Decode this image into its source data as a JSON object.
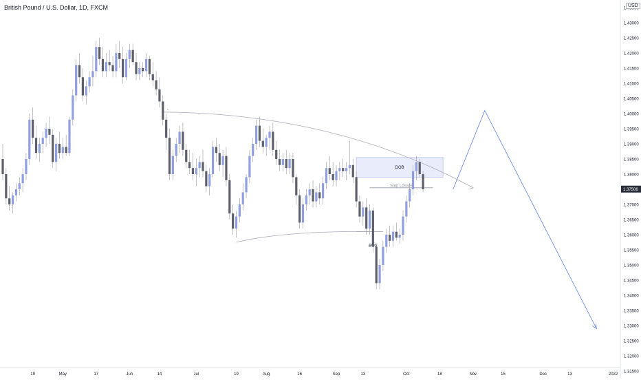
{
  "header": {
    "title": "British Pound / U.S. Dollar, 1D, FXCM",
    "currency": "USD"
  },
  "colors": {
    "bull": "#8f9fe0",
    "bear": "#5d606b",
    "wick": "#9598a1",
    "projection": "#6f8fe0",
    "arc": "#b2b5be",
    "zone_fill": "#e8ecfb",
    "zone_border": "#b9c2ee",
    "price_tag": "#2a2e39"
  },
  "chart_data": {
    "type": "candlestick",
    "symbol": "GBPUSD",
    "y_range": [
      1.3125,
      1.4375
    ],
    "y_ticks": [
      "1.43500",
      "1.43000",
      "1.42500",
      "1.42000",
      "1.41500",
      "1.41000",
      "1.40500",
      "1.40000",
      "1.39500",
      "1.39000",
      "1.38500",
      "1.38000",
      "1.37500",
      "1.37000",
      "1.36500",
      "1.36000",
      "1.35500",
      "1.35000",
      "1.34500",
      "1.34000",
      "1.33500",
      "1.33000",
      "1.32500",
      "1.32000",
      "1.31500"
    ],
    "x_labels": [
      {
        "i": 9,
        "label": "19"
      },
      {
        "i": 18,
        "label": "May"
      },
      {
        "i": 28,
        "label": "17"
      },
      {
        "i": 38,
        "label": "Jun"
      },
      {
        "i": 47,
        "label": "14"
      },
      {
        "i": 58,
        "label": "Jul"
      },
      {
        "i": 70,
        "label": "19"
      },
      {
        "i": 79,
        "label": "Aug"
      },
      {
        "i": 89,
        "label": "16"
      },
      {
        "i": 100,
        "label": "Sep"
      },
      {
        "i": 108,
        "label": "13"
      },
      {
        "i": 121,
        "label": "Oct"
      },
      {
        "i": 131,
        "label": "18"
      },
      {
        "i": 141,
        "label": "Nov"
      },
      {
        "i": 150,
        "label": "15"
      },
      {
        "i": 162,
        "label": "Dec"
      },
      {
        "i": 170,
        "label": "13"
      },
      {
        "i": 183,
        "label": "2022"
      }
    ],
    "candles": [
      [
        1.385,
        1.39,
        1.378,
        1.38
      ],
      [
        1.38,
        1.382,
        1.37,
        1.372
      ],
      [
        1.372,
        1.376,
        1.368,
        1.37
      ],
      [
        1.37,
        1.374,
        1.367,
        1.373
      ],
      [
        1.373,
        1.377,
        1.371,
        1.375
      ],
      [
        1.375,
        1.379,
        1.373,
        1.377
      ],
      [
        1.377,
        1.382,
        1.374,
        1.38
      ],
      [
        1.38,
        1.387,
        1.378,
        1.385
      ],
      [
        1.385,
        1.4,
        1.383,
        1.398
      ],
      [
        1.398,
        1.402,
        1.39,
        1.392
      ],
      [
        1.392,
        1.396,
        1.385,
        1.387
      ],
      [
        1.387,
        1.392,
        1.384,
        1.39
      ],
      [
        1.39,
        1.394,
        1.387,
        1.392
      ],
      [
        1.392,
        1.397,
        1.389,
        1.395
      ],
      [
        1.395,
        1.399,
        1.39,
        1.393
      ],
      [
        1.393,
        1.395,
        1.382,
        1.384
      ],
      [
        1.384,
        1.392,
        1.381,
        1.39
      ],
      [
        1.39,
        1.394,
        1.385,
        1.387
      ],
      [
        1.387,
        1.392,
        1.385,
        1.389
      ],
      [
        1.389,
        1.393,
        1.386,
        1.387
      ],
      [
        1.387,
        1.399,
        1.386,
        1.398
      ],
      [
        1.398,
        1.408,
        1.396,
        1.406
      ],
      [
        1.406,
        1.418,
        1.404,
        1.416
      ],
      [
        1.416,
        1.42,
        1.41,
        1.412
      ],
      [
        1.412,
        1.415,
        1.404,
        1.406
      ],
      [
        1.406,
        1.411,
        1.403,
        1.409
      ],
      [
        1.409,
        1.414,
        1.407,
        1.412
      ],
      [
        1.412,
        1.419,
        1.409,
        1.414
      ],
      [
        1.414,
        1.424,
        1.412,
        1.422
      ],
      [
        1.422,
        1.425,
        1.416,
        1.418
      ],
      [
        1.418,
        1.422,
        1.412,
        1.414
      ],
      [
        1.414,
        1.42,
        1.412,
        1.417
      ],
      [
        1.417,
        1.421,
        1.414,
        1.416
      ],
      [
        1.416,
        1.419,
        1.412,
        1.414
      ],
      [
        1.414,
        1.423,
        1.412,
        1.42
      ],
      [
        1.42,
        1.424,
        1.415,
        1.418
      ],
      [
        1.418,
        1.422,
        1.41,
        1.412
      ],
      [
        1.412,
        1.42,
        1.411,
        1.418
      ],
      [
        1.418,
        1.423,
        1.415,
        1.421
      ],
      [
        1.421,
        1.423,
        1.416,
        1.417
      ],
      [
        1.417,
        1.42,
        1.411,
        1.413
      ],
      [
        1.413,
        1.417,
        1.411,
        1.415
      ],
      [
        1.415,
        1.417,
        1.412,
        1.414
      ],
      [
        1.414,
        1.42,
        1.412,
        1.418
      ],
      [
        1.418,
        1.419,
        1.411,
        1.413
      ],
      [
        1.413,
        1.417,
        1.409,
        1.411
      ],
      [
        1.411,
        1.414,
        1.406,
        1.408
      ],
      [
        1.408,
        1.412,
        1.402,
        1.404
      ],
      [
        1.404,
        1.406,
        1.396,
        1.398
      ],
      [
        1.398,
        1.4,
        1.388,
        1.392
      ],
      [
        1.392,
        1.395,
        1.378,
        1.38
      ],
      [
        1.38,
        1.388,
        1.378,
        1.386
      ],
      [
        1.386,
        1.392,
        1.384,
        1.39
      ],
      [
        1.39,
        1.396,
        1.387,
        1.394
      ],
      [
        1.394,
        1.397,
        1.386,
        1.388
      ],
      [
        1.388,
        1.39,
        1.382,
        1.384
      ],
      [
        1.384,
        1.388,
        1.38,
        1.382
      ],
      [
        1.382,
        1.387,
        1.378,
        1.38
      ],
      [
        1.38,
        1.385,
        1.376,
        1.382
      ],
      [
        1.382,
        1.386,
        1.379,
        1.384
      ],
      [
        1.384,
        1.388,
        1.379,
        1.381
      ],
      [
        1.381,
        1.383,
        1.374,
        1.376
      ],
      [
        1.376,
        1.382,
        1.373,
        1.38
      ],
      [
        1.38,
        1.391,
        1.379,
        1.389
      ],
      [
        1.389,
        1.392,
        1.384,
        1.387
      ],
      [
        1.387,
        1.39,
        1.381,
        1.383
      ],
      [
        1.383,
        1.388,
        1.379,
        1.386
      ],
      [
        1.386,
        1.389,
        1.376,
        1.378
      ],
      [
        1.378,
        1.38,
        1.365,
        1.367
      ],
      [
        1.367,
        1.37,
        1.36,
        1.362
      ],
      [
        1.362,
        1.368,
        1.359,
        1.366
      ],
      [
        1.366,
        1.372,
        1.364,
        1.37
      ],
      [
        1.37,
        1.377,
        1.368,
        1.374
      ],
      [
        1.374,
        1.38,
        1.372,
        1.379
      ],
      [
        1.379,
        1.388,
        1.377,
        1.386
      ],
      [
        1.386,
        1.392,
        1.384,
        1.39
      ],
      [
        1.39,
        1.398,
        1.388,
        1.396
      ],
      [
        1.396,
        1.399,
        1.389,
        1.391
      ],
      [
        1.391,
        1.395,
        1.387,
        1.389
      ],
      [
        1.389,
        1.393,
        1.386,
        1.392
      ],
      [
        1.392,
        1.396,
        1.388,
        1.394
      ],
      [
        1.394,
        1.397,
        1.386,
        1.388
      ],
      [
        1.388,
        1.391,
        1.383,
        1.385
      ],
      [
        1.385,
        1.388,
        1.381,
        1.383
      ],
      [
        1.383,
        1.387,
        1.381,
        1.385
      ],
      [
        1.385,
        1.388,
        1.38,
        1.382
      ],
      [
        1.382,
        1.387,
        1.38,
        1.385
      ],
      [
        1.385,
        1.387,
        1.377,
        1.379
      ],
      [
        1.379,
        1.38,
        1.37,
        1.373
      ],
      [
        1.373,
        1.375,
        1.362,
        1.364
      ],
      [
        1.364,
        1.372,
        1.362,
        1.37
      ],
      [
        1.37,
        1.375,
        1.368,
        1.373
      ],
      [
        1.373,
        1.377,
        1.37,
        1.375
      ],
      [
        1.375,
        1.378,
        1.369,
        1.371
      ],
      [
        1.371,
        1.376,
        1.369,
        1.374
      ],
      [
        1.374,
        1.377,
        1.37,
        1.372
      ],
      [
        1.372,
        1.379,
        1.37,
        1.377
      ],
      [
        1.377,
        1.384,
        1.375,
        1.382
      ],
      [
        1.382,
        1.386,
        1.378,
        1.38
      ],
      [
        1.38,
        1.384,
        1.376,
        1.378
      ],
      [
        1.378,
        1.383,
        1.376,
        1.381
      ],
      [
        1.381,
        1.384,
        1.378,
        1.382
      ],
      [
        1.382,
        1.385,
        1.379,
        1.381
      ],
      [
        1.381,
        1.384,
        1.378,
        1.382
      ],
      [
        1.382,
        1.391,
        1.38,
        1.383
      ],
      [
        1.383,
        1.385,
        1.377,
        1.379
      ],
      [
        1.379,
        1.381,
        1.369,
        1.371
      ],
      [
        1.371,
        1.373,
        1.364,
        1.366
      ],
      [
        1.366,
        1.371,
        1.363,
        1.369
      ],
      [
        1.369,
        1.372,
        1.36,
        1.362
      ],
      [
        1.362,
        1.37,
        1.36,
        1.368
      ],
      [
        1.368,
        1.369,
        1.354,
        1.356
      ],
      [
        1.356,
        1.357,
        1.342,
        1.344
      ],
      [
        1.344,
        1.352,
        1.342,
        1.35
      ],
      [
        1.35,
        1.358,
        1.348,
        1.356
      ],
      [
        1.356,
        1.362,
        1.354,
        1.36
      ],
      [
        1.36,
        1.363,
        1.356,
        1.358
      ],
      [
        1.358,
        1.363,
        1.356,
        1.361
      ],
      [
        1.361,
        1.364,
        1.358,
        1.359
      ],
      [
        1.359,
        1.362,
        1.357,
        1.36
      ],
      [
        1.36,
        1.368,
        1.358,
        1.366
      ],
      [
        1.366,
        1.373,
        1.364,
        1.371
      ],
      [
        1.371,
        1.377,
        1.369,
        1.375
      ],
      [
        1.375,
        1.383,
        1.373,
        1.381
      ],
      [
        1.381,
        1.386,
        1.378,
        1.384
      ],
      [
        1.384,
        1.385,
        1.379,
        1.38
      ],
      [
        1.38,
        1.381,
        1.374,
        1.375
      ]
    ],
    "annotations": {
      "zone_label": "DOB",
      "stop_label": "Stop Losses",
      "bos_label": "BOS",
      "current_price": "1.37506"
    }
  }
}
